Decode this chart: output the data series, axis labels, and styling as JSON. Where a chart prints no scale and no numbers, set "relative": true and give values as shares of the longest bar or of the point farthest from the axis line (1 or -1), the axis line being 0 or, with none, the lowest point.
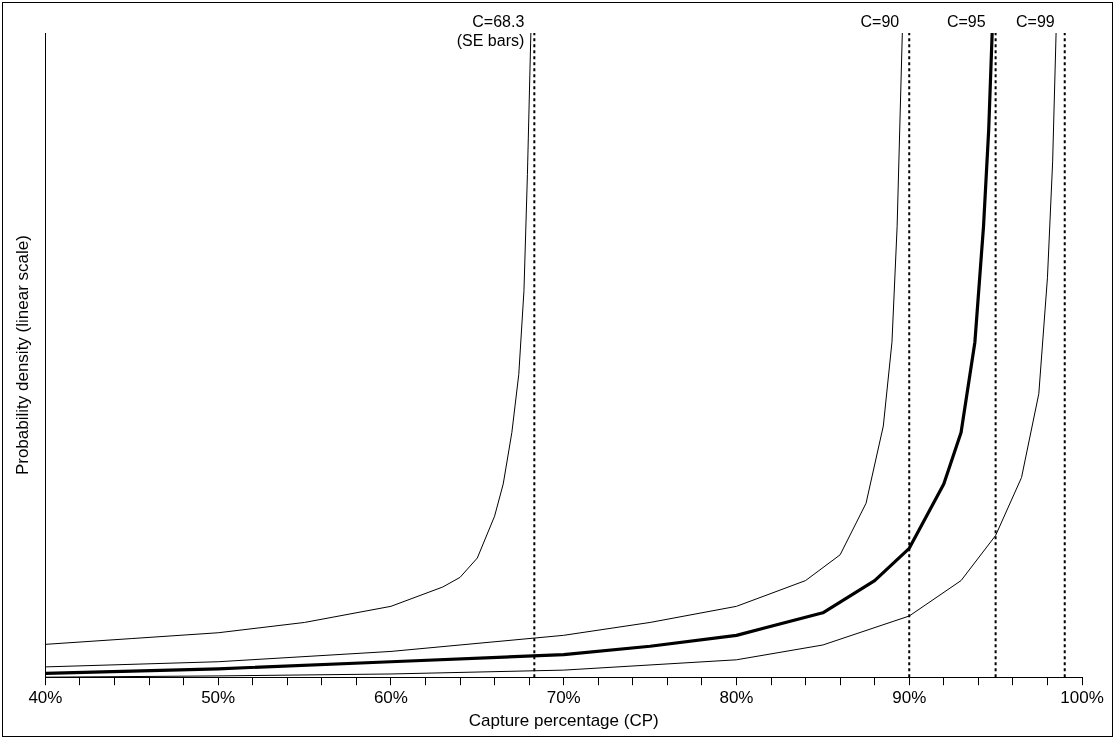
{
  "chart_data": {
    "type": "line",
    "relative": true,
    "xlabel": "Capture percentage (CP)",
    "ylabel": "Probability density (linear scale)",
    "xlim": [
      40,
      100
    ],
    "xticks": [
      {
        "value": 40,
        "label": "40%"
      },
      {
        "value": 42,
        "label": null
      },
      {
        "value": 44,
        "label": null
      },
      {
        "value": 46,
        "label": null
      },
      {
        "value": 48,
        "label": null
      },
      {
        "value": 50,
        "label": "50%"
      },
      {
        "value": 52,
        "label": null
      },
      {
        "value": 54,
        "label": null
      },
      {
        "value": 56,
        "label": null
      },
      {
        "value": 58,
        "label": null
      },
      {
        "value": 60,
        "label": "60%"
      },
      {
        "value": 62,
        "label": null
      },
      {
        "value": 64,
        "label": null
      },
      {
        "value": 66,
        "label": null
      },
      {
        "value": 68,
        "label": null
      },
      {
        "value": 70,
        "label": "70%"
      },
      {
        "value": 72,
        "label": null
      },
      {
        "value": 74,
        "label": null
      },
      {
        "value": 76,
        "label": null
      },
      {
        "value": 78,
        "label": null
      },
      {
        "value": 80,
        "label": "80%"
      },
      {
        "value": 82,
        "label": null
      },
      {
        "value": 84,
        "label": null
      },
      {
        "value": 86,
        "label": null
      },
      {
        "value": 88,
        "label": null
      },
      {
        "value": 90,
        "label": "90%"
      },
      {
        "value": 92,
        "label": null
      },
      {
        "value": 94,
        "label": null
      },
      {
        "value": 96,
        "label": null
      },
      {
        "value": 98,
        "label": null
      },
      {
        "value": 100,
        "label": "100%"
      }
    ],
    "grid": false,
    "legend": false,
    "marker": "none",
    "line_style": "solid",
    "series": [
      {
        "color": "#000000",
        "x": [
          40,
          45,
          50,
          55,
          60,
          63,
          64,
          65,
          66,
          66.5,
          67,
          67.4,
          67.7,
          67.9,
          68.1
        ],
        "values": [
          0.051,
          0.06,
          0.069,
          0.085,
          0.11,
          0.14,
          0.155,
          0.185,
          0.25,
          0.3,
          0.38,
          0.47,
          0.6,
          0.78,
          1
        ]
      },
      {
        "color": "#000000",
        "x": [
          40,
          50,
          60,
          70,
          75,
          80,
          84,
          86,
          87.5,
          88.5,
          89,
          89.3,
          89.6
        ],
        "values": [
          0.016,
          0.024,
          0.04,
          0.065,
          0.085,
          0.11,
          0.15,
          0.19,
          0.27,
          0.39,
          0.52,
          0.7,
          1
        ]
      },
      {
        "color": "#000000",
        "x": [
          40,
          50,
          60,
          70,
          75,
          80,
          85,
          88,
          90,
          92,
          93,
          93.8,
          94.3,
          94.6,
          94.8
        ],
        "values": [
          0.006,
          0.013,
          0.024,
          0.035,
          0.048,
          0.065,
          0.1,
          0.15,
          0.2,
          0.3,
          0.38,
          0.52,
          0.7,
          0.85,
          1
        ]
      },
      {
        "color": "#000000",
        "x": [
          40,
          50,
          60,
          70,
          80,
          85,
          90,
          93,
          95,
          96.5,
          97.5,
          98,
          98.3,
          98.5
        ],
        "values": [
          0,
          0.002,
          0.005,
          0.011,
          0.027,
          0.05,
          0.095,
          0.15,
          0.22,
          0.31,
          0.44,
          0.62,
          0.8,
          1
        ]
      }
    ],
    "ref_lines": [
      {
        "axis": "x",
        "value": 68.3,
        "label": "C=68.3\n(SE bars)",
        "color": "#000000",
        "line_style": "dotted"
      },
      {
        "axis": "x",
        "value": 90,
        "label": "C=90",
        "color": "#000000",
        "line_style": "dotted"
      },
      {
        "axis": "x",
        "value": 95,
        "label": "C=95",
        "color": "#000000",
        "line_style": "dotted"
      },
      {
        "axis": "x",
        "value": 99,
        "label": "C=99",
        "color": "#000000",
        "line_style": "dotted"
      }
    ]
  }
}
